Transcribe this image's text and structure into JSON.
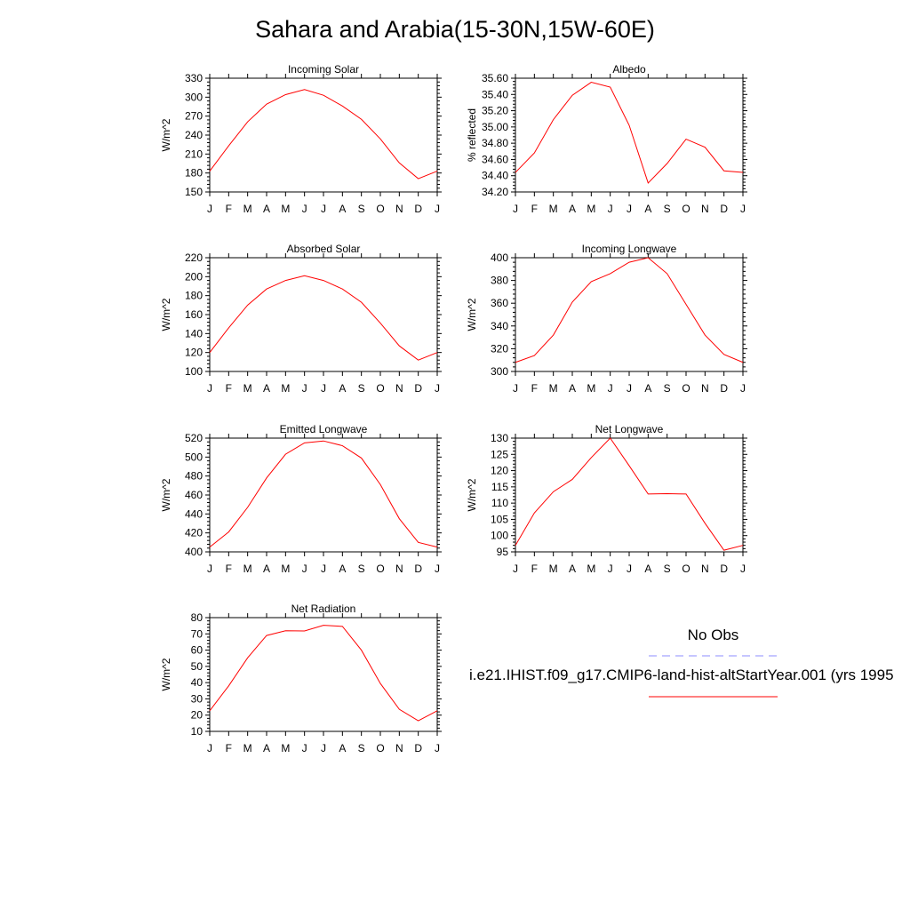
{
  "title": "Sahara and Arabia(15-30N,15W-60E)",
  "month_labels": [
    "J",
    "F",
    "M",
    "A",
    "M",
    "J",
    "J",
    "A",
    "S",
    "O",
    "N",
    "D",
    "J"
  ],
  "legend": {
    "obs_label": "No Obs",
    "model_label": "i.e21.IHIST.f09_g17.CMIP6-land-hist-altStartYear.001 (yrs 1995",
    "obs_color": "#8c8cff",
    "model_color": "#ff0000"
  },
  "chart_data": [
    {
      "type": "line",
      "title": "Incoming Solar",
      "ylabel": "W/m^2",
      "ylim": [
        150,
        330
      ],
      "yticks": [
        150,
        180,
        210,
        240,
        270,
        300,
        330
      ],
      "ytick_labels": [
        "150",
        "180",
        "210",
        "240",
        "270",
        "300",
        "330"
      ],
      "categories": [
        "J",
        "F",
        "M",
        "A",
        "M",
        "J",
        "J",
        "A",
        "S",
        "O",
        "N",
        "D",
        "J"
      ],
      "series": [
        {
          "values": [
            183,
            223,
            261,
            289,
            304,
            312,
            303,
            286,
            265,
            234,
            196,
            171,
            183
          ]
        }
      ]
    },
    {
      "type": "line",
      "title": "Albedo",
      "ylabel": "% reflected",
      "ylim": [
        34.2,
        35.6
      ],
      "yticks": [
        34.2,
        34.4,
        34.6,
        34.8,
        35.0,
        35.2,
        35.4,
        35.6
      ],
      "ytick_labels": [
        "34.20",
        "34.40",
        "34.60",
        "34.80",
        "35.00",
        "35.20",
        "35.40",
        "35.60"
      ],
      "categories": [
        "J",
        "F",
        "M",
        "A",
        "M",
        "J",
        "J",
        "A",
        "S",
        "O",
        "N",
        "D",
        "J"
      ],
      "series": [
        {
          "values": [
            34.44,
            34.68,
            35.09,
            35.39,
            35.55,
            35.49,
            35.02,
            34.31,
            34.55,
            34.85,
            34.75,
            34.46,
            34.44
          ]
        }
      ]
    },
    {
      "type": "line",
      "title": "Absorbed Solar",
      "ylabel": "W/m^2",
      "ylim": [
        100,
        220
      ],
      "yticks": [
        100,
        120,
        140,
        160,
        180,
        200,
        220
      ],
      "ytick_labels": [
        "100",
        "120",
        "140",
        "160",
        "180",
        "200",
        "220"
      ],
      "categories": [
        "J",
        "F",
        "M",
        "A",
        "M",
        "J",
        "J",
        "A",
        "S",
        "O",
        "N",
        "D",
        "J"
      ],
      "series": [
        {
          "values": [
            120,
            146,
            170,
            187,
            196,
            201,
            196,
            187,
            173,
            151,
            127,
            112,
            120
          ]
        }
      ]
    },
    {
      "type": "line",
      "title": "Incoming Longwave",
      "ylabel": "W/m^2",
      "ylim": [
        300,
        400
      ],
      "yticks": [
        300,
        320,
        340,
        360,
        380,
        400
      ],
      "ytick_labels": [
        "300",
        "320",
        "340",
        "360",
        "380",
        "400"
      ],
      "categories": [
        "J",
        "F",
        "M",
        "A",
        "M",
        "J",
        "J",
        "A",
        "S",
        "O",
        "N",
        "D",
        "J"
      ],
      "series": [
        {
          "values": [
            308,
            314,
            332,
            361,
            379,
            386,
            396,
            400,
            386,
            359,
            332,
            315,
            308
          ]
        }
      ]
    },
    {
      "type": "line",
      "title": "Emitted Longwave",
      "ylabel": "W/m^2",
      "ylim": [
        400,
        520
      ],
      "yticks": [
        400,
        420,
        440,
        460,
        480,
        500,
        520
      ],
      "ytick_labels": [
        "400",
        "420",
        "440",
        "460",
        "480",
        "500",
        "520"
      ],
      "categories": [
        "J",
        "F",
        "M",
        "A",
        "M",
        "J",
        "J",
        "A",
        "S",
        "O",
        "N",
        "D",
        "J"
      ],
      "series": [
        {
          "values": [
            405,
            421,
            447,
            478,
            503,
            515,
            517,
            512,
            499,
            471,
            435,
            410,
            405
          ]
        }
      ]
    },
    {
      "type": "line",
      "title": "Net Longwave",
      "ylabel": "W/m^2",
      "ylim": [
        95,
        130
      ],
      "yticks": [
        95,
        100,
        105,
        110,
        115,
        120,
        125,
        130
      ],
      "ytick_labels": [
        "95",
        "100",
        "105",
        "110",
        "115",
        "120",
        "125",
        "130"
      ],
      "categories": [
        "J",
        "F",
        "M",
        "A",
        "M",
        "J",
        "J",
        "A",
        "S",
        "O",
        "N",
        "D",
        "J"
      ],
      "series": [
        {
          "values": [
            97,
            107,
            113.5,
            117.3,
            124,
            130,
            121.5,
            112.8,
            112.9,
            112.8,
            103.8,
            95.5,
            97
          ]
        }
      ]
    },
    {
      "type": "line",
      "title": "Net Radiation",
      "ylabel": "W/m^2",
      "ylim": [
        10,
        80
      ],
      "yticks": [
        10,
        20,
        30,
        40,
        50,
        60,
        70,
        80
      ],
      "ytick_labels": [
        "10",
        "20",
        "30",
        "40",
        "50",
        "60",
        "70",
        "80"
      ],
      "categories": [
        "J",
        "F",
        "M",
        "A",
        "M",
        "J",
        "J",
        "A",
        "S",
        "O",
        "N",
        "D",
        "J"
      ],
      "series": [
        {
          "values": [
            22.7,
            38,
            55.3,
            69,
            71.9,
            71.8,
            75.3,
            74.6,
            60,
            39.5,
            23.6,
            16.5,
            22.7
          ]
        }
      ]
    }
  ]
}
